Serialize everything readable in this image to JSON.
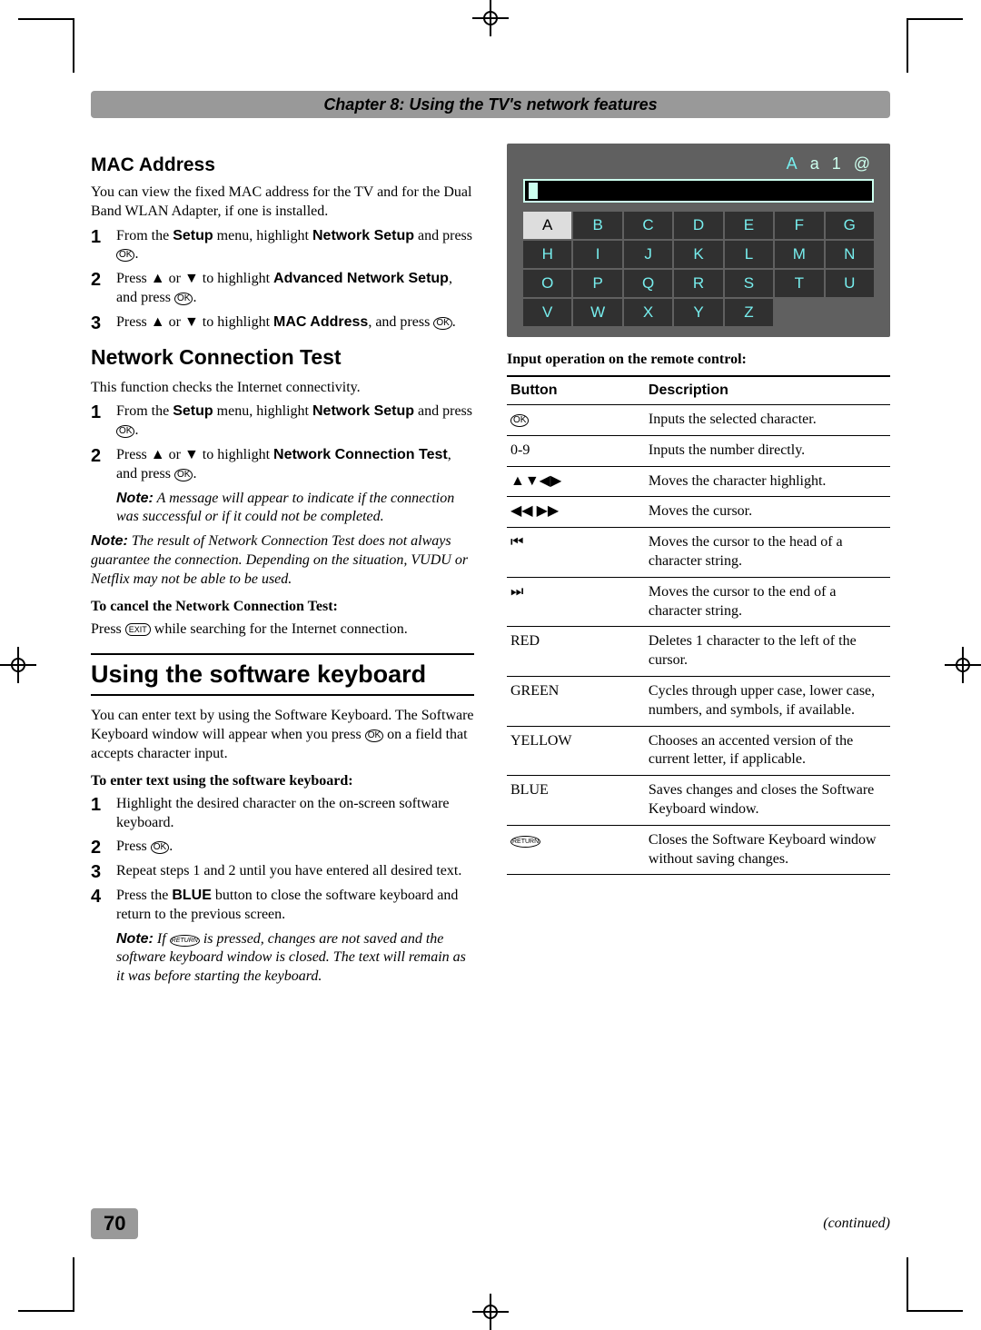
{
  "chapter_bar": "Chapter 8: Using the TV's network features",
  "page_number": "70",
  "continued": "(continued)",
  "mac": {
    "heading": "MAC Address",
    "intro": "You can view the fixed MAC address for the TV and for the Dual Band WLAN Adapter, if one is installed.",
    "step1_a": "From the ",
    "step1_b": "Setup",
    "step1_c": " menu, highlight ",
    "step1_d": "Network Setup",
    "step1_e": " and press ",
    "step2_a": "Press ▲ or ▼ to highlight ",
    "step2_b": "Advanced Network Setup",
    "step2_c": ", and press ",
    "step3_a": "Press ▲ or ▼ to highlight ",
    "step3_b": "MAC Address",
    "step3_c": ", and press "
  },
  "nct": {
    "heading": "Network Connection Test",
    "intro": "This function checks the Internet connectivity.",
    "step1_a": "From the ",
    "step1_b": "Setup",
    "step1_c": " menu, highlight ",
    "step1_d": "Network Setup",
    "step1_e": " and press ",
    "step2_a": "Press ▲ or ▼ to highlight ",
    "step2_b": "Network Connection Test",
    "step2_c": ", and press ",
    "step2_note_lbl": "Note:",
    "step2_note": " A message will appear to indicate if the connection was successful or if it could not be completed.",
    "note2_lbl": "Note:",
    "note2": " The result of Network Connection Test does not always guarantee the connection. Depending on the situation, VUDU or Netflix may not be able to be used.",
    "cancel_h": "To cancel the Network Connection Test:",
    "cancel_a": "Press ",
    "cancel_b": " while searching for the Internet connection."
  },
  "swkb": {
    "heading": "Using the software keyboard",
    "intro_a": "You can enter text by using the Software Keyboard. The Software Keyboard window will appear when you press ",
    "intro_b": " on a field that accepts character input.",
    "enter_h": "To enter text using the software keyboard:",
    "s1": "Highlight the desired character on the on-screen software keyboard.",
    "s2": "Press ",
    "s3": "Repeat steps 1 and 2 until you have entered all desired text.",
    "s4_a": "Press the ",
    "s4_b": "BLUE",
    "s4_c": " button to close the software keyboard and return to the previous screen.",
    "s4_note_lbl": "Note:",
    "s4_note_a": " If ",
    "s4_note_b": " is pressed, changes are not saved and the software keyboard window is closed. The text will remain as it was before starting the keyboard."
  },
  "keyboard": {
    "modes": [
      "A",
      "a",
      "1",
      "@"
    ],
    "keys": [
      "A",
      "B",
      "C",
      "D",
      "E",
      "F",
      "G",
      "H",
      "I",
      "J",
      "K",
      "L",
      "M",
      "N",
      "O",
      "P",
      "Q",
      "R",
      "S",
      "T",
      "U",
      "V",
      "W",
      "X",
      "Y",
      "Z"
    ],
    "selected_index": 0,
    "panel_bg": "#606060",
    "key_bg": "#303030",
    "key_fg": "#77eeee",
    "sel_bg": "#dddddd",
    "sel_fg": "#000000"
  },
  "remote_table": {
    "caption": "Input operation on the remote control:",
    "h1": "Button",
    "h2": "Description",
    "rows": [
      {
        "b": "OK_ICON",
        "d": "Inputs the selected character."
      },
      {
        "b": "0-9",
        "d": "Inputs the number directly."
      },
      {
        "b": "▲▼◀▶",
        "d": "Moves the character highlight."
      },
      {
        "b": "◀◀  ▶▶",
        "d": "Moves the cursor."
      },
      {
        "b": "⏮",
        "d": "Moves the cursor to the head of a character string."
      },
      {
        "b": "⏭",
        "d": "Moves the cursor to the end of a character string."
      },
      {
        "b": "RED",
        "d": "Deletes 1 character to the left of the cursor."
      },
      {
        "b": "GREEN",
        "d": "Cycles through upper case, lower case, numbers, and symbols, if available."
      },
      {
        "b": "YELLOW",
        "d": "Chooses an accented version of the current letter, if applicable."
      },
      {
        "b": "BLUE",
        "d": "Saves changes and closes the Software Keyboard window."
      },
      {
        "b": "RETURN_ICON",
        "d": "Closes the Software Keyboard window without saving changes."
      }
    ]
  }
}
